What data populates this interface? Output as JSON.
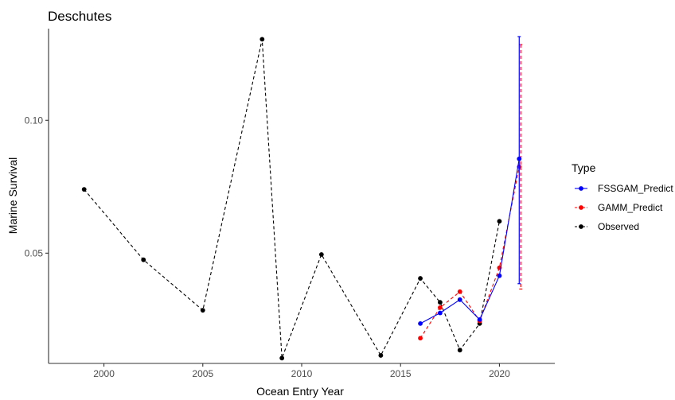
{
  "chart_data": {
    "type": "line",
    "title": "Deschutes",
    "xlabel": "Ocean Entry Year",
    "ylabel": "Marine Survival",
    "xlim": [
      1997.2,
      2022.8
    ],
    "ylim": [
      0.0085,
      0.1345
    ],
    "xticks": [
      2000,
      2005,
      2010,
      2015,
      2020
    ],
    "xtick_labels": [
      "2000",
      "2005",
      "2010",
      "2015",
      "2020"
    ],
    "yticks": [
      0.05,
      0.1
    ],
    "ytick_labels": [
      "0.05",
      "0.10"
    ],
    "grid": false,
    "legend": {
      "title": "Type",
      "position": "right"
    },
    "series": [
      {
        "name": "FSSGAM_Predict",
        "color": "#0000ff",
        "dash": "solid",
        "x": [
          2016,
          2017,
          2018,
          2019,
          2020,
          2021
        ],
        "y": [
          0.0235,
          0.0275,
          0.0325,
          0.025,
          0.0415,
          0.0855
        ],
        "error_bar": {
          "x": 2021,
          "low": 0.0385,
          "high": 0.1315
        }
      },
      {
        "name": "GAMM_Predict",
        "color": "#ff0000",
        "dash": "dashed",
        "x": [
          2016,
          2017,
          2018,
          2019,
          2020,
          2021
        ],
        "y": [
          0.018,
          0.0295,
          0.0355,
          0.0245,
          0.0445,
          0.0825
        ],
        "error_bar": {
          "x": 2021,
          "low": 0.0365,
          "high": 0.1285
        }
      },
      {
        "name": "Observed",
        "color": "#000000",
        "dash": "dashed",
        "x": [
          1999,
          2002,
          2005,
          2008,
          2009,
          2011,
          2014,
          2016,
          2017,
          2018,
          2019,
          2020
        ],
        "y": [
          0.074,
          0.0475,
          0.0285,
          0.1305,
          0.0105,
          0.0495,
          0.0115,
          0.0405,
          0.0315,
          0.0135,
          0.0235,
          0.062
        ]
      }
    ]
  }
}
